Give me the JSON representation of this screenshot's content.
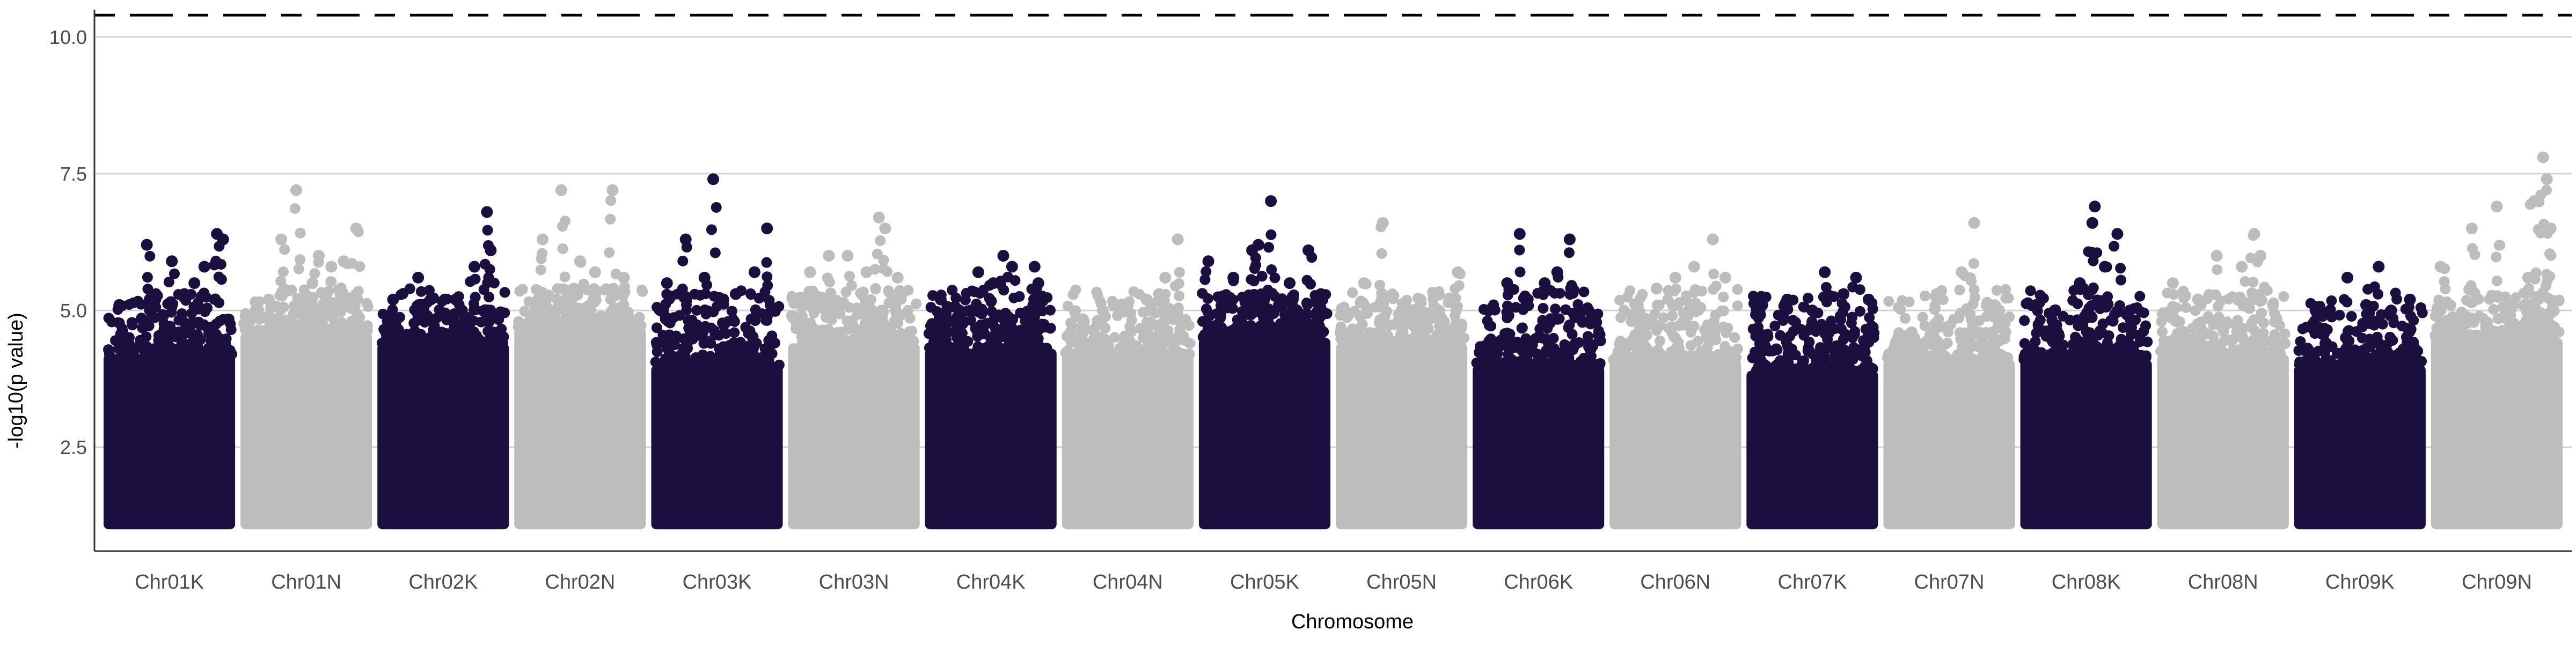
{
  "chart_data": {
    "type": "scatter",
    "title": "",
    "xlabel": "Chromosome",
    "ylabel": "-log10(p value)",
    "ylim": [
      0.6,
      10.5
    ],
    "y_ticks": [
      "2.5",
      "5.0",
      "7.5",
      "10.0"
    ],
    "y_tick_values": [
      2.5,
      5.0,
      7.5,
      10.0
    ],
    "grid": "horizontal",
    "legend": "none",
    "colors": {
      "odd": "#1b0f40",
      "even": "#bdbdbd",
      "threshold_line": "#000000",
      "grid": "#d3d3d3",
      "axis": "#333333"
    },
    "thresholds": [
      {
        "value": 10.4,
        "style": "dashed"
      }
    ],
    "categories": [
      "Chr01K",
      "Chr01N",
      "Chr02K",
      "Chr02N",
      "Chr03K",
      "Chr03N",
      "Chr04K",
      "Chr04N",
      "Chr05K",
      "Chr05N",
      "Chr06K",
      "Chr06N",
      "Chr07K",
      "Chr07N",
      "Chr08K",
      "Chr08N",
      "Chr09K",
      "Chr09N"
    ],
    "series": [
      {
        "category": "Chr01K",
        "color_group": "odd",
        "dense_floor": 1.0,
        "dense_top": 4.2,
        "peaks": [
          [
            0.1,
            5.1
          ],
          [
            0.32,
            6.2
          ],
          [
            0.52,
            5.9
          ],
          [
            0.62,
            5.3
          ],
          [
            0.78,
            5.8
          ],
          [
            0.88,
            6.4
          ],
          [
            0.93,
            6.3
          ],
          [
            0.7,
            5.5
          ],
          [
            0.45,
            4.9
          ]
        ]
      },
      {
        "category": "Chr01N",
        "color_group": "even",
        "dense_floor": 1.0,
        "dense_top": 4.6,
        "peaks": [
          [
            0.3,
            6.3
          ],
          [
            0.42,
            7.2
          ],
          [
            0.6,
            6.0
          ],
          [
            0.7,
            5.8
          ],
          [
            0.8,
            5.9
          ],
          [
            0.9,
            6.5
          ],
          [
            0.55,
            5.5
          ],
          [
            0.2,
            5.2
          ]
        ]
      },
      {
        "category": "Chr02K",
        "color_group": "odd",
        "dense_floor": 1.0,
        "dense_top": 4.4,
        "peaks": [
          [
            0.1,
            5.2
          ],
          [
            0.3,
            5.6
          ],
          [
            0.4,
            5.2
          ],
          [
            0.6,
            5.2
          ],
          [
            0.75,
            5.8
          ],
          [
            0.85,
            6.8
          ],
          [
            0.88,
            6.1
          ],
          [
            0.65,
            5.0
          ]
        ]
      },
      {
        "category": "Chr02N",
        "color_group": "even",
        "dense_floor": 1.0,
        "dense_top": 4.7,
        "peaks": [
          [
            0.2,
            6.3
          ],
          [
            0.35,
            7.2
          ],
          [
            0.5,
            5.9
          ],
          [
            0.62,
            5.7
          ],
          [
            0.76,
            7.2
          ],
          [
            0.85,
            5.6
          ],
          [
            0.45,
            5.4
          ]
        ]
      },
      {
        "category": "Chr03K",
        "color_group": "odd",
        "dense_floor": 1.0,
        "dense_top": 4.0,
        "peaks": [
          [
            0.1,
            5.5
          ],
          [
            0.25,
            6.3
          ],
          [
            0.4,
            5.6
          ],
          [
            0.55,
            5.2
          ],
          [
            0.65,
            5.3
          ],
          [
            0.8,
            5.7
          ],
          [
            0.9,
            6.5
          ],
          [
            0.47,
            7.4
          ]
        ]
      },
      {
        "category": "Chr03N",
        "color_group": "even",
        "dense_floor": 1.0,
        "dense_top": 4.4,
        "peaks": [
          [
            0.15,
            5.7
          ],
          [
            0.3,
            6.0
          ],
          [
            0.45,
            6.0
          ],
          [
            0.6,
            5.7
          ],
          [
            0.7,
            6.7
          ],
          [
            0.75,
            6.5
          ],
          [
            0.85,
            5.6
          ]
        ]
      },
      {
        "category": "Chr04K",
        "color_group": "odd",
        "dense_floor": 1.0,
        "dense_top": 4.3,
        "peaks": [
          [
            0.1,
            5.2
          ],
          [
            0.25,
            5.0
          ],
          [
            0.4,
            5.7
          ],
          [
            0.52,
            5.5
          ],
          [
            0.6,
            6.0
          ],
          [
            0.67,
            5.8
          ],
          [
            0.85,
            5.8
          ],
          [
            0.88,
            5.5
          ]
        ]
      },
      {
        "category": "Chr04N",
        "color_group": "even",
        "dense_floor": 1.0,
        "dense_top": 4.2,
        "peaks": [
          [
            0.15,
            4.8
          ],
          [
            0.3,
            5.0
          ],
          [
            0.5,
            5.1
          ],
          [
            0.65,
            5.2
          ],
          [
            0.8,
            5.6
          ],
          [
            0.9,
            6.3
          ],
          [
            0.75,
            5.3
          ]
        ]
      },
      {
        "category": "Chr05K",
        "color_group": "odd",
        "dense_floor": 1.0,
        "dense_top": 4.5,
        "peaks": [
          [
            0.05,
            5.9
          ],
          [
            0.25,
            5.6
          ],
          [
            0.4,
            6.1
          ],
          [
            0.45,
            6.2
          ],
          [
            0.55,
            7.0
          ],
          [
            0.7,
            5.5
          ],
          [
            0.85,
            6.1
          ],
          [
            0.95,
            5.3
          ]
        ]
      },
      {
        "category": "Chr05N",
        "color_group": "even",
        "dense_floor": 1.0,
        "dense_top": 4.4,
        "peaks": [
          [
            0.2,
            5.5
          ],
          [
            0.35,
            6.6
          ],
          [
            0.5,
            5.0
          ],
          [
            0.65,
            5.2
          ],
          [
            0.8,
            5.0
          ],
          [
            0.95,
            5.7
          ]
        ]
      },
      {
        "category": "Chr06K",
        "color_group": "odd",
        "dense_floor": 1.0,
        "dense_top": 4.0,
        "peaks": [
          [
            0.1,
            5.0
          ],
          [
            0.25,
            5.5
          ],
          [
            0.35,
            6.4
          ],
          [
            0.55,
            5.5
          ],
          [
            0.65,
            5.7
          ],
          [
            0.75,
            6.3
          ],
          [
            0.9,
            5.0
          ]
        ]
      },
      {
        "category": "Chr06N",
        "color_group": "even",
        "dense_floor": 1.0,
        "dense_top": 4.1,
        "peaks": [
          [
            0.2,
            5.1
          ],
          [
            0.35,
            5.4
          ],
          [
            0.5,
            5.6
          ],
          [
            0.65,
            5.8
          ],
          [
            0.8,
            6.3
          ],
          [
            0.9,
            5.6
          ]
        ]
      },
      {
        "category": "Chr07K",
        "color_group": "odd",
        "dense_floor": 1.0,
        "dense_top": 3.9,
        "peaks": [
          [
            0.1,
            5.1
          ],
          [
            0.3,
            5.2
          ],
          [
            0.5,
            5.0
          ],
          [
            0.6,
            5.7
          ],
          [
            0.75,
            5.3
          ],
          [
            0.85,
            5.6
          ],
          [
            0.95,
            5.2
          ]
        ]
      },
      {
        "category": "Chr07N",
        "color_group": "even",
        "dense_floor": 1.0,
        "dense_top": 4.1,
        "peaks": [
          [
            0.2,
            4.6
          ],
          [
            0.4,
            5.3
          ],
          [
            0.6,
            5.7
          ],
          [
            0.7,
            6.6
          ],
          [
            0.8,
            5.1
          ],
          [
            0.9,
            5.0
          ]
        ]
      },
      {
        "category": "Chr08K",
        "color_group": "odd",
        "dense_floor": 1.0,
        "dense_top": 4.1,
        "peaks": [
          [
            0.1,
            5.1
          ],
          [
            0.25,
            5.0
          ],
          [
            0.45,
            5.5
          ],
          [
            0.55,
            6.6
          ],
          [
            0.57,
            6.9
          ],
          [
            0.65,
            5.8
          ],
          [
            0.75,
            6.4
          ],
          [
            0.85,
            5.0
          ]
        ]
      },
      {
        "category": "Chr08N",
        "color_group": "even",
        "dense_floor": 1.0,
        "dense_top": 4.2,
        "peaks": [
          [
            0.1,
            5.5
          ],
          [
            0.3,
            5.2
          ],
          [
            0.45,
            6.0
          ],
          [
            0.65,
            5.8
          ],
          [
            0.75,
            6.4
          ],
          [
            0.8,
            6.0
          ],
          [
            0.9,
            5.1
          ]
        ]
      },
      {
        "category": "Chr09K",
        "color_group": "odd",
        "dense_floor": 1.0,
        "dense_top": 4.0,
        "peaks": [
          [
            0.2,
            4.9
          ],
          [
            0.4,
            5.6
          ],
          [
            0.55,
            5.1
          ],
          [
            0.65,
            5.8
          ],
          [
            0.75,
            5.0
          ],
          [
            0.9,
            5.2
          ]
        ]
      },
      {
        "category": "Chr09N",
        "color_group": "even",
        "dense_floor": 1.0,
        "dense_top": 4.5,
        "peaks": [
          [
            0.05,
            5.8
          ],
          [
            0.3,
            6.5
          ],
          [
            0.5,
            6.9
          ],
          [
            0.6,
            5.1
          ],
          [
            0.75,
            5.6
          ],
          [
            0.8,
            7.0
          ],
          [
            0.87,
            7.8
          ],
          [
            0.9,
            7.4
          ],
          [
            0.93,
            6.5
          ]
        ]
      }
    ]
  }
}
